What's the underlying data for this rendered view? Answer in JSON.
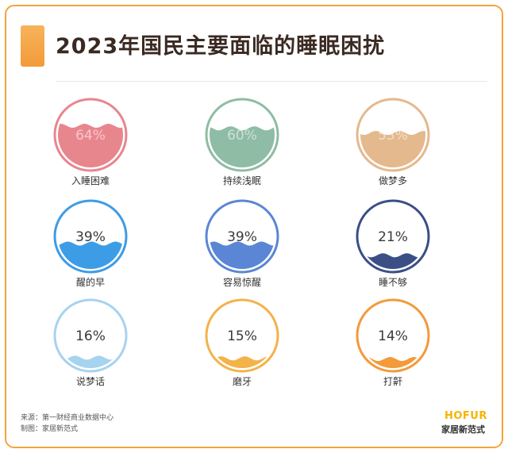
{
  "header": {
    "title": "2023年国民主要面临的睡眠困扰"
  },
  "chart_data": {
    "type": "gauge",
    "title": "2023年国民主要面临的睡眠困扰",
    "unit": "%",
    "items": [
      {
        "label": "入睡困难",
        "value": 64,
        "value_label": "64%",
        "color": "#e8868e"
      },
      {
        "label": "持续浅眠",
        "value": 60,
        "value_label": "60%",
        "color": "#8fbca4"
      },
      {
        "label": "做梦多",
        "value": 53,
        "value_label": "53%",
        "color": "#e4b98e"
      },
      {
        "label": "醒的早",
        "value": 39,
        "value_label": "39%",
        "color": "#3d9ce6"
      },
      {
        "label": "容易惊醒",
        "value": 39,
        "value_label": "39%",
        "color": "#5b86d6"
      },
      {
        "label": "睡不够",
        "value": 21,
        "value_label": "21%",
        "color": "#3b4f86"
      },
      {
        "label": "说梦话",
        "value": 16,
        "value_label": "16%",
        "color": "#a6d3ef"
      },
      {
        "label": "磨牙",
        "value": 15,
        "value_label": "15%",
        "color": "#f4b24a"
      },
      {
        "label": "打鼾",
        "value": 14,
        "value_label": "14%",
        "color": "#f39a3a"
      }
    ]
  },
  "footer": {
    "source": "来源：第一财经商业数据中心",
    "made_by": "制图：家居新范式",
    "brand_en": "HOFUR",
    "brand_cn": "家居新范式"
  }
}
